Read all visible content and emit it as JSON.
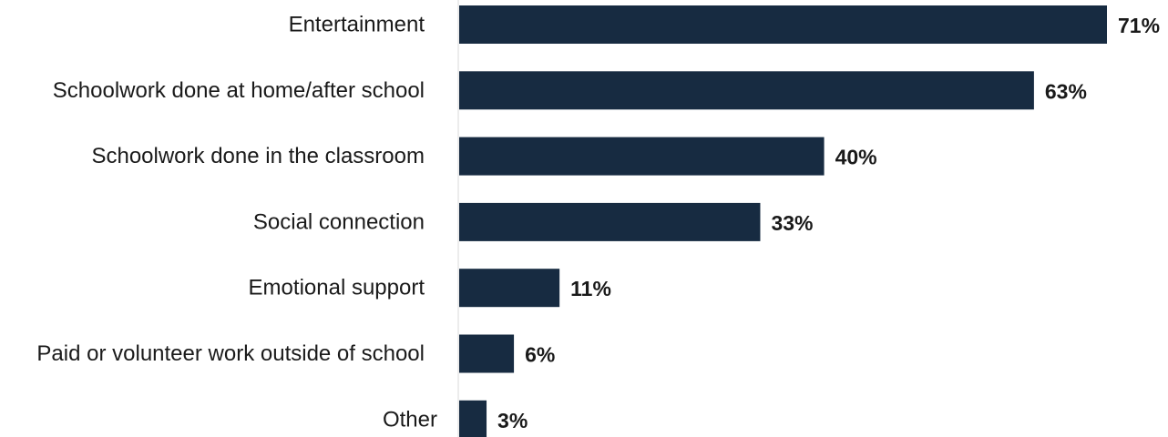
{
  "chart_data": {
    "type": "bar",
    "orientation": "horizontal",
    "categories": [
      "Entertainment",
      "Schoolwork done at home/after school",
      "Schoolwork done in the classroom",
      "Social connection",
      "Emotional support",
      "Paid or volunteer work outside of school",
      "Other"
    ],
    "values": [
      71,
      63,
      40,
      33,
      11,
      6,
      3
    ],
    "value_labels": [
      "71%",
      "63%",
      "40%",
      "33%",
      "11%",
      "6%",
      "3%"
    ],
    "title": "",
    "xlabel": "",
    "ylabel": "",
    "xlim": [
      0,
      71
    ],
    "grid": false,
    "legend": "none",
    "bar_color": "#172b41"
  }
}
